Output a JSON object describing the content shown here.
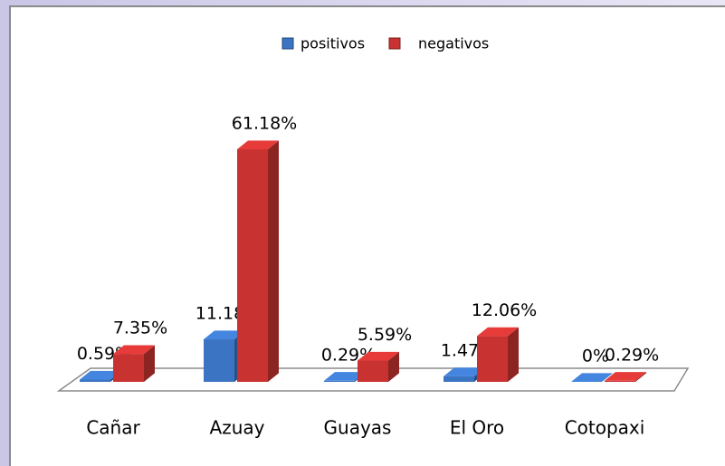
{
  "chart_data": {
    "type": "bar3d",
    "categories": [
      "Cañar",
      "Azuay",
      "Guayas",
      "El Oro",
      "Cotopaxi"
    ],
    "series": [
      {
        "name": "positivos",
        "color": "#3a74c2",
        "values": [
          0.59,
          11.18,
          0.29,
          1.47,
          0
        ],
        "value_labels": [
          "0.59%",
          "11.18%",
          "0.29%",
          "1.47%",
          "0%"
        ]
      },
      {
        "name": "negativos",
        "color": "#c83331",
        "values": [
          7.35,
          61.18,
          5.59,
          12.06,
          0.29
        ],
        "value_labels": [
          "7.35%",
          "61.18%",
          "5.59%",
          "12.06%",
          "0.29%"
        ]
      }
    ],
    "legend": "top"
  }
}
